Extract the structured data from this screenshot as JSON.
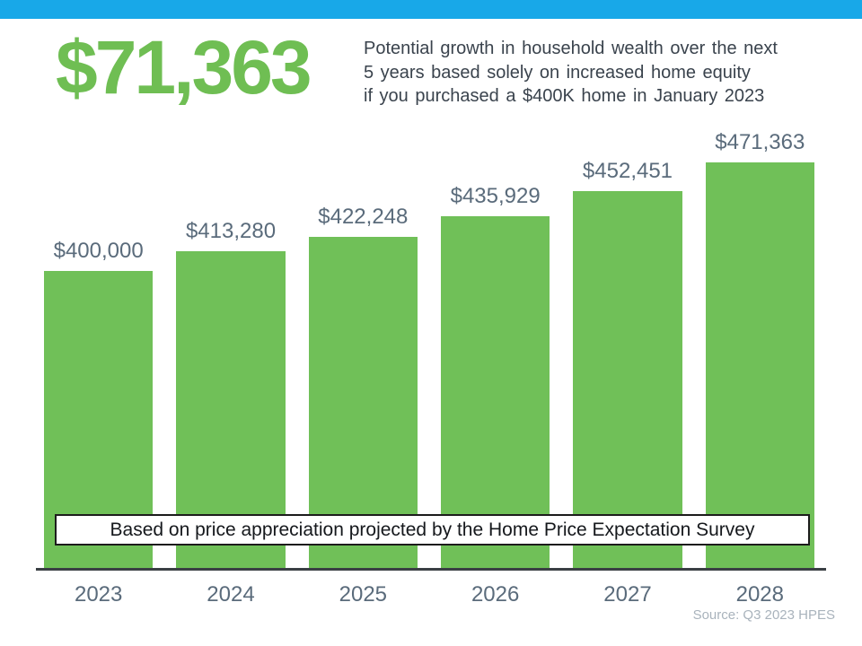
{
  "header": {
    "headline": "$71,363",
    "subtitle_lines": [
      "Potential growth in household wealth over the next",
      "5 years based solely on increased home equity",
      "if you purchased a $400K home in January 2023"
    ]
  },
  "chart_data": {
    "type": "bar",
    "categories": [
      "2023",
      "2024",
      "2025",
      "2026",
      "2027",
      "2028"
    ],
    "values": [
      400000,
      413280,
      422248,
      435929,
      452451,
      471363
    ],
    "value_labels": [
      "$400,000",
      "$413,280",
      "$422,248",
      "$435,929",
      "$452,451",
      "$471,363"
    ],
    "title": "",
    "xlabel": "",
    "ylabel": "",
    "ylim": [
      205000,
      471363
    ],
    "grid": false,
    "legend": false,
    "banner": "Based on price appreciation projected by the Home Price Expectation Survey",
    "source": "Source: Q3 2023 HPES"
  },
  "colors": {
    "accent_blue": "#18A8E8",
    "bar_green": "#70C058",
    "headline_green": "#6FBE53",
    "label_slate": "#5A6B7B",
    "text_dark": "#3A434D",
    "axis": "#3A3F44",
    "source_gray": "#A9B3BC"
  }
}
